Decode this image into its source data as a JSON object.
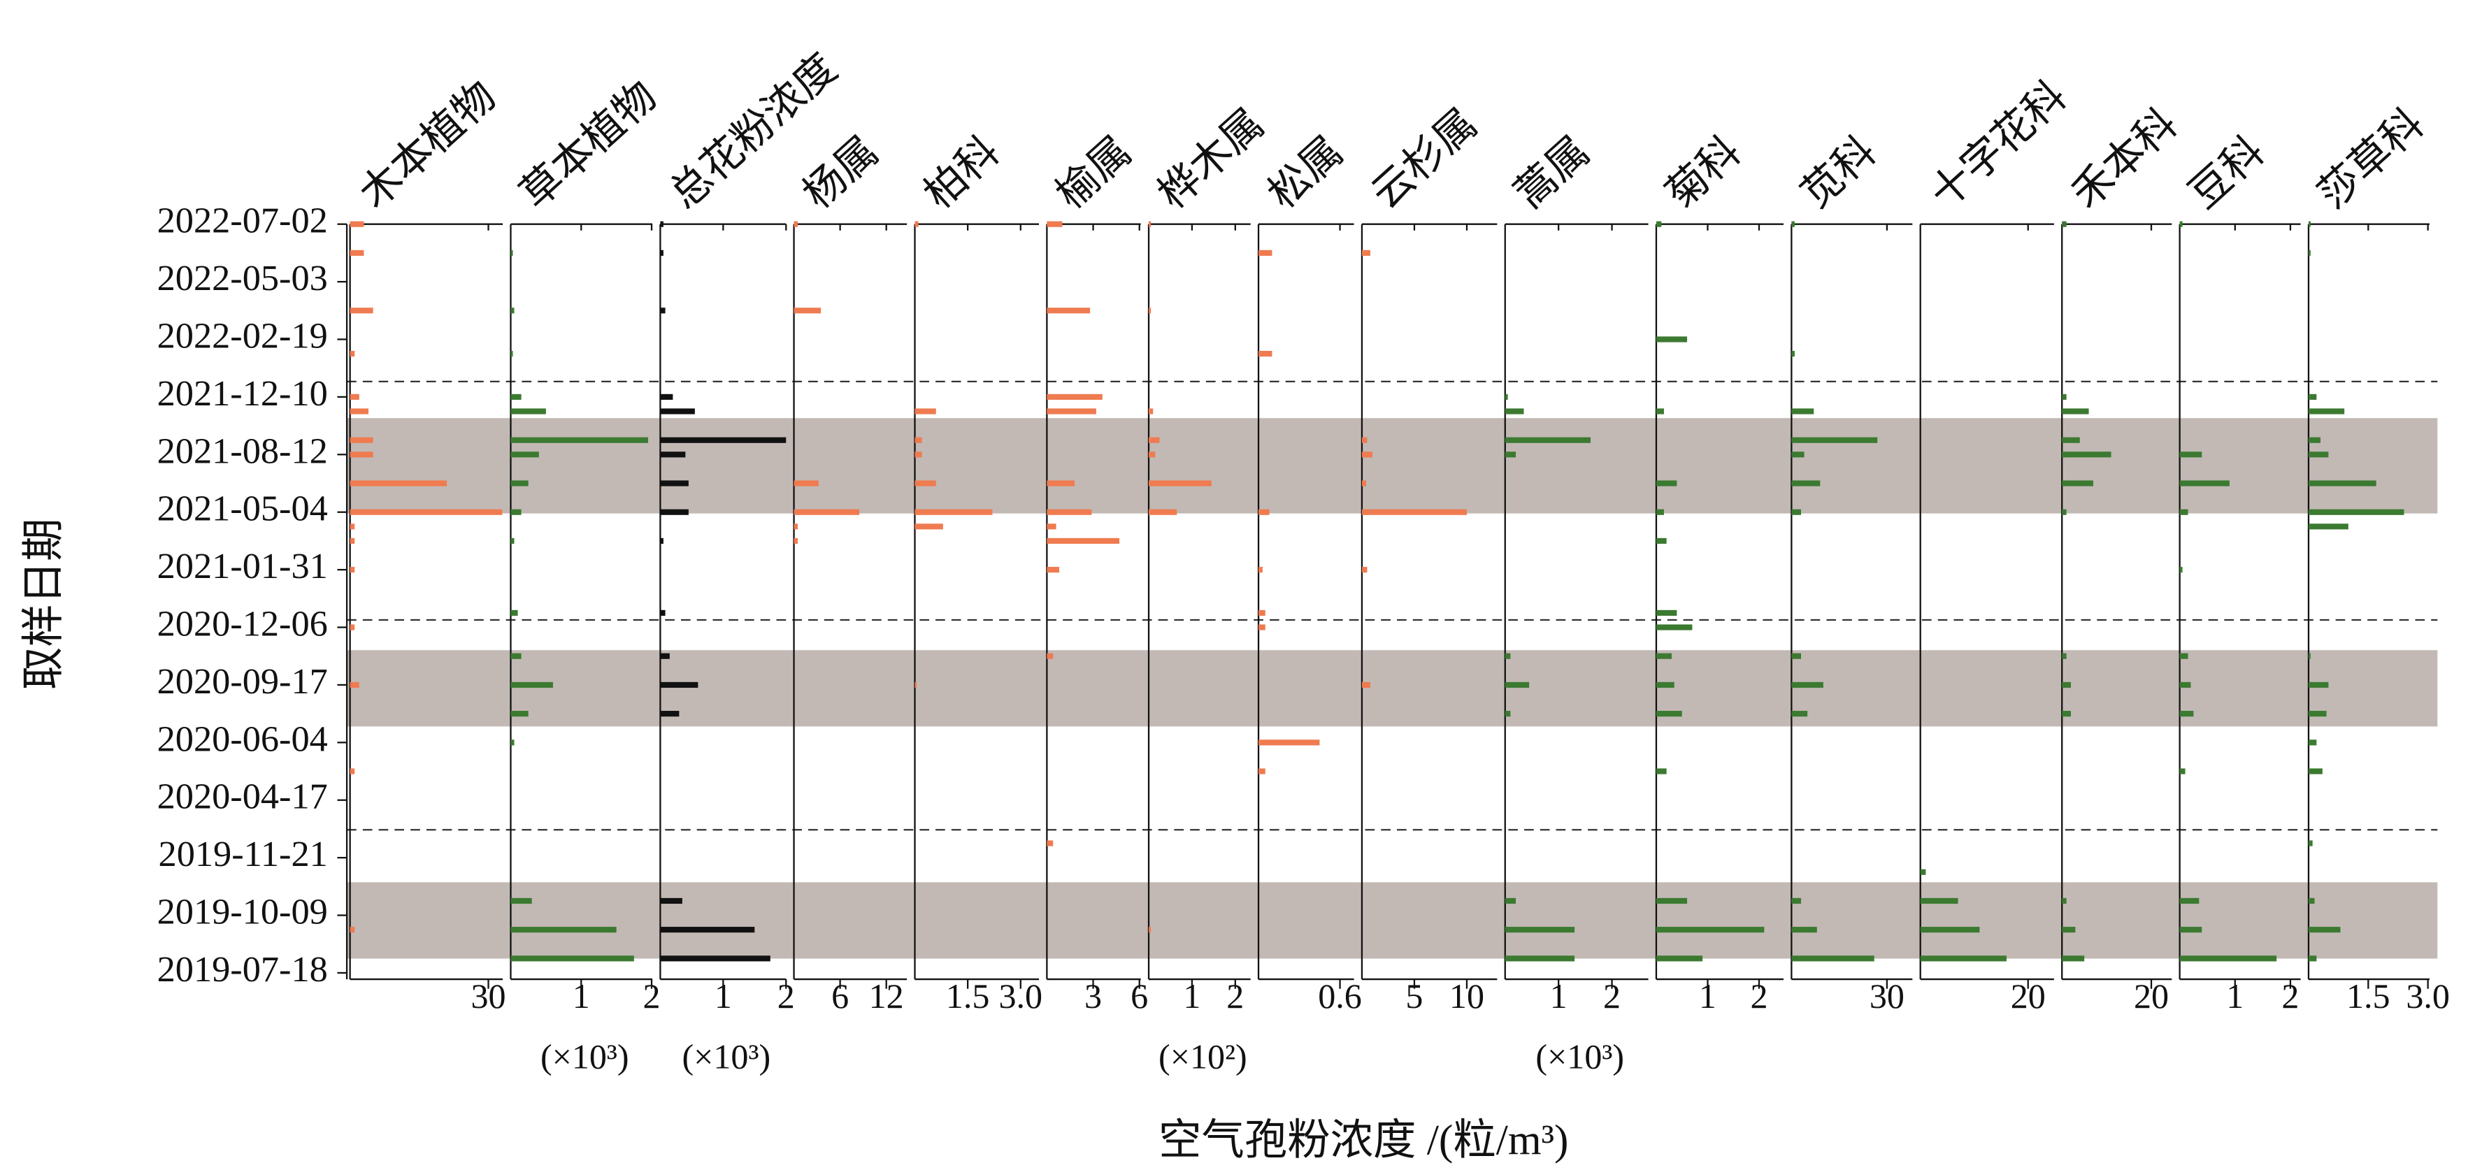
{
  "chart_data": {
    "type": "bar",
    "x_label": "空气孢粉浓度 /(粒/m³)",
    "y_label": "取样日期",
    "categories": [
      "2022-07-02",
      null,
      null,
      null,
      "2022-05-03",
      null,
      null,
      null,
      "2022-02-19",
      null,
      null,
      null,
      "2021-12-10",
      null,
      null,
      null,
      "2021-08-12",
      null,
      null,
      null,
      "2021-05-04",
      null,
      null,
      null,
      "2021-01-31",
      null,
      null,
      null,
      "2020-12-06",
      null,
      null,
      null,
      "2020-09-17",
      null,
      null,
      null,
      "2020-06-04",
      null,
      null,
      null,
      "2020-04-17",
      null,
      null,
      null,
      "2019-11-21",
      null,
      null,
      null,
      "2019-10-09",
      null,
      null,
      null,
      "2019-07-18"
    ],
    "series": [
      {
        "name": "木本植物",
        "color": "#ef7b50",
        "xlim": [
          0,
          34.5
        ],
        "xticks": [
          30
        ],
        "values": [
          3,
          0,
          3,
          0,
          0,
          0,
          5,
          0,
          0,
          1,
          0,
          0,
          2,
          4,
          0,
          5,
          5,
          0,
          21,
          0,
          33,
          1,
          1,
          0,
          1,
          0,
          0,
          0,
          1,
          0,
          0,
          0,
          2,
          0,
          0,
          0,
          0,
          0,
          1,
          0,
          0,
          0,
          0,
          0,
          0,
          0,
          0,
          0,
          0,
          1,
          0,
          0,
          0
        ]
      },
      {
        "name": "草本植物",
        "color": "#3b7a30",
        "xlim": [
          0,
          2.1
        ],
        "xticks": [
          1,
          2
        ],
        "scale_label": "(×10³)",
        "values": [
          0,
          0,
          0.03,
          0,
          0,
          0,
          0.05,
          0,
          0,
          0.03,
          0,
          0,
          0.15,
          0.5,
          0,
          1.95,
          0.4,
          0,
          0.25,
          0,
          0.15,
          0,
          0.05,
          0,
          0,
          0,
          0,
          0.1,
          0,
          0,
          0.15,
          0,
          0.6,
          0,
          0.25,
          0,
          0.05,
          0,
          0,
          0,
          0,
          0,
          0,
          0,
          0,
          0,
          0,
          0.3,
          0,
          1.5,
          0,
          1.75,
          0
        ]
      },
      {
        "name": "总花粉浓度",
        "color": "#111111",
        "xlim": [
          0,
          2.1
        ],
        "xticks": [
          1,
          2
        ],
        "scale_label": "(×10³)",
        "values": [
          0.05,
          0,
          0.05,
          0,
          0,
          0,
          0.08,
          0,
          0,
          0,
          0,
          0,
          0.2,
          0.55,
          0,
          2.0,
          0.4,
          0,
          0.45,
          0,
          0.45,
          0,
          0.05,
          0,
          0,
          0,
          0,
          0.08,
          0,
          0,
          0.15,
          0,
          0.6,
          0,
          0.3,
          0,
          0,
          0,
          0,
          0,
          0,
          0,
          0,
          0,
          0,
          0,
          0,
          0.35,
          0,
          1.5,
          0,
          1.75,
          0
        ]
      },
      {
        "name": "杨属",
        "color": "#ef7b50",
        "xlim": [
          0,
          15.5
        ],
        "xticks": [
          6,
          12
        ],
        "values": [
          0.5,
          0,
          0,
          0,
          0,
          0,
          3.5,
          0,
          0,
          0,
          0,
          0,
          0,
          0,
          0,
          0,
          0,
          0,
          3.2,
          0,
          8.5,
          0.5,
          0.5,
          0,
          0,
          0,
          0,
          0,
          0,
          0,
          0,
          0,
          0,
          0,
          0,
          0,
          0,
          0,
          0,
          0,
          0,
          0,
          0,
          0,
          0,
          0,
          0,
          0,
          0,
          0,
          0,
          0,
          0
        ]
      },
      {
        "name": "柏科",
        "color": "#ef7b50",
        "xlim": [
          0,
          3.7
        ],
        "xticks": [
          1.5,
          {
            "value": 3,
            "label": "3.0"
          }
        ],
        "values": [
          0.1,
          0,
          0,
          0,
          0,
          0,
          0,
          0,
          0,
          0,
          0,
          0,
          0,
          0.6,
          0,
          0.2,
          0.2,
          0,
          0.6,
          0,
          2.2,
          0.8,
          0,
          0,
          0,
          0,
          0,
          0,
          0,
          0,
          0,
          0,
          0.05,
          0,
          0,
          0,
          0,
          0,
          0,
          0,
          0,
          0,
          0,
          0,
          0,
          0,
          0,
          0,
          0,
          0,
          0,
          0,
          0
        ]
      },
      {
        "name": "榆属",
        "color": "#ef7b50",
        "xlim": [
          0,
          6.5
        ],
        "xticks": [
          3,
          6
        ],
        "values": [
          1.0,
          0,
          0,
          0,
          0,
          0,
          2.8,
          0,
          0,
          0,
          0,
          0,
          3.6,
          3.2,
          0,
          0,
          0,
          0,
          1.8,
          0,
          2.9,
          0.6,
          4.7,
          0,
          0.8,
          0,
          0,
          0,
          0,
          0,
          0.4,
          0,
          0,
          0,
          0,
          0,
          0,
          0,
          0,
          0,
          0,
          0,
          0,
          0.4,
          0,
          0,
          0,
          0,
          0,
          0,
          0,
          0,
          0
        ]
      },
      {
        "name": "桦木属",
        "color": "#ef7b50",
        "xlim": [
          0,
          2.5
        ],
        "xticks": [
          1,
          2
        ],
        "scale_label": "(×10²)",
        "values": [
          0.05,
          0,
          0,
          0,
          0,
          0,
          0.05,
          0,
          0,
          0,
          0,
          0,
          0,
          0.1,
          0,
          0.25,
          0.15,
          0,
          1.45,
          0,
          0.65,
          0,
          0,
          0,
          0,
          0,
          0,
          0,
          0,
          0,
          0,
          0,
          0,
          0,
          0,
          0,
          0,
          0,
          0,
          0,
          0,
          0,
          0,
          0,
          0,
          0,
          0,
          0,
          0,
          0.05,
          0,
          0,
          0
        ]
      },
      {
        "name": "松属",
        "color": "#ef7b50",
        "xlim": [
          0,
          0.75
        ],
        "xticks": [
          0.6
        ],
        "values": [
          0,
          0,
          0.1,
          0,
          0,
          0,
          0,
          0,
          0,
          0.1,
          0,
          0,
          0,
          0,
          0,
          0,
          0,
          0,
          0,
          0,
          0.08,
          0,
          0,
          0,
          0.03,
          0,
          0,
          0.05,
          0.05,
          0,
          0,
          0,
          0,
          0,
          0,
          0,
          0.45,
          0,
          0.05,
          0,
          0,
          0,
          0,
          0,
          0,
          0,
          0,
          0,
          0,
          0,
          0,
          0,
          0
        ]
      },
      {
        "name": "云杉属",
        "color": "#ef7b50",
        "xlim": [
          0,
          13.5
        ],
        "xticks": [
          5,
          10
        ],
        "values": [
          0,
          0,
          0.8,
          0,
          0,
          0,
          0,
          0,
          0,
          0,
          0,
          0,
          0,
          0,
          0,
          0.5,
          1.0,
          0,
          0.4,
          0,
          10,
          0,
          0,
          0,
          0.5,
          0,
          0,
          0,
          0,
          0,
          0,
          0,
          0.8,
          0,
          0,
          0,
          0,
          0,
          0,
          0,
          0,
          0,
          0,
          0,
          0,
          0,
          0,
          0,
          0,
          0,
          0,
          0,
          0
        ]
      },
      {
        "name": "蒿属",
        "color": "#3b7a30",
        "xlim": [
          0,
          2.8
        ],
        "xticks": [
          1,
          2
        ],
        "scale_label": "(×10³)",
        "values": [
          0,
          0,
          0,
          0,
          0,
          0,
          0,
          0,
          0,
          0,
          0,
          0,
          0.05,
          0.35,
          0,
          1.6,
          0.2,
          0,
          0,
          0,
          0,
          0,
          0,
          0,
          0,
          0,
          0,
          0,
          0,
          0,
          0.1,
          0,
          0.45,
          0,
          0.1,
          0,
          0,
          0,
          0,
          0,
          0,
          0,
          0,
          0,
          0,
          0,
          0,
          0.2,
          0,
          1.3,
          0,
          1.3,
          0
        ]
      },
      {
        "name": "菊科",
        "color": "#3b7a30",
        "xlim": [
          0,
          2.6
        ],
        "xticks": [
          1,
          2
        ],
        "values": [
          0.1,
          0,
          0,
          0,
          0,
          0,
          0,
          0,
          0.6,
          0,
          0,
          0,
          0,
          0.15,
          0,
          0,
          0,
          0,
          0.4,
          0,
          0.15,
          0,
          0.2,
          0,
          0,
          0,
          0,
          0.4,
          0.7,
          0,
          0.3,
          0,
          0.35,
          0,
          0.5,
          0,
          0,
          0,
          0.2,
          0,
          0,
          0,
          0,
          0,
          0,
          0,
          0,
          0.6,
          0,
          2.1,
          0,
          0.9,
          0
        ]
      },
      {
        "name": "苋科",
        "color": "#3b7a30",
        "xlim": [
          0,
          40
        ],
        "xticks": [
          30
        ],
        "values": [
          1,
          0,
          0,
          0,
          0,
          0,
          0,
          0,
          0,
          1,
          0,
          0,
          0,
          7,
          0,
          27,
          4,
          0,
          9,
          0,
          3,
          0,
          0,
          0,
          0,
          0,
          0,
          0,
          0,
          0,
          3,
          0,
          10,
          0,
          5,
          0,
          0,
          0,
          0,
          0,
          0,
          0,
          0,
          0,
          0,
          0,
          0,
          3,
          0,
          8,
          0,
          26,
          0
        ]
      },
      {
        "name": "十字花科",
        "color": "#3b7a30",
        "xlim": [
          0,
          26
        ],
        "xticks": [
          20
        ],
        "values": [
          0,
          0,
          0,
          0,
          0,
          0,
          0,
          0,
          0,
          0,
          0,
          0,
          0,
          0,
          0,
          0,
          0,
          0,
          0,
          0,
          0,
          0,
          0,
          0,
          0,
          0,
          0,
          0,
          0,
          0,
          0,
          0,
          0,
          0,
          0,
          0,
          0,
          0,
          0,
          0,
          0,
          0,
          0,
          0,
          0,
          1,
          0,
          7,
          0,
          11,
          0,
          16,
          0
        ]
      },
      {
        "name": "禾本科",
        "color": "#3b7a30",
        "xlim": [
          0,
          26
        ],
        "xticks": [
          20
        ],
        "values": [
          1,
          0,
          0,
          0,
          0,
          0,
          0,
          0,
          0,
          0,
          0,
          0,
          1,
          6,
          0,
          4,
          11,
          0,
          7,
          0,
          1,
          0,
          0,
          0,
          0,
          0,
          0,
          0,
          0,
          0,
          1,
          0,
          2,
          0,
          2,
          0,
          0,
          0,
          0,
          0,
          0,
          0,
          0,
          0,
          0,
          0,
          0,
          1,
          0,
          3,
          0,
          5,
          0
        ]
      },
      {
        "name": "豆科",
        "color": "#3b7a30",
        "xlim": [
          0,
          2.3
        ],
        "xticks": [
          1,
          2
        ],
        "values": [
          0.05,
          0,
          0,
          0,
          0,
          0,
          0,
          0,
          0,
          0,
          0,
          0,
          0,
          0,
          0,
          0,
          0.4,
          0,
          0.9,
          0,
          0.15,
          0,
          0,
          0,
          0.05,
          0,
          0,
          0,
          0,
          0,
          0.15,
          0,
          0.2,
          0,
          0.25,
          0,
          0,
          0,
          0.1,
          0,
          0,
          0,
          0,
          0,
          0,
          0,
          0,
          0.35,
          0,
          0.4,
          0,
          1.75,
          0
        ]
      },
      {
        "name": "莎草科",
        "color": "#3b7a30",
        "xlim": [
          0,
          3.2
        ],
        "xticks": [
          1.5,
          {
            "value": 3,
            "label": "3.0"
          }
        ],
        "values": [
          0.05,
          0,
          0.05,
          0,
          0,
          0,
          0,
          0,
          0,
          0,
          0,
          0,
          0.2,
          0.9,
          0,
          0.3,
          0.5,
          0,
          1.7,
          0,
          2.4,
          1.0,
          0,
          0,
          0,
          0,
          0,
          0,
          0,
          0,
          0.05,
          0,
          0.5,
          0,
          0.45,
          0,
          0.2,
          0,
          0.35,
          0,
          0,
          0,
          0,
          0.1,
          0,
          0,
          0,
          0.15,
          0,
          0.8,
          0,
          0.2,
          0
        ]
      }
    ]
  }
}
